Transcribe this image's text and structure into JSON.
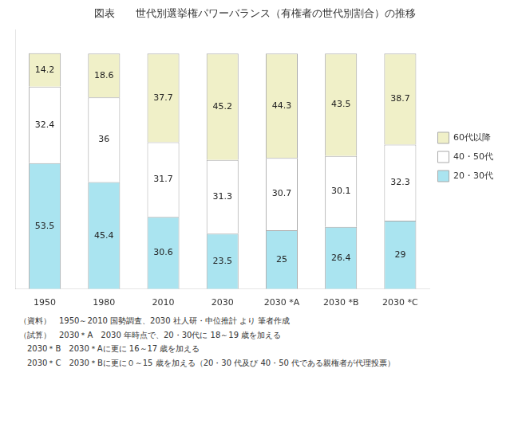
{
  "chart_data": {
    "type": "bar",
    "title": "図表　　世代別選挙権パワーバランス（有権者の世代別割合）の推移",
    "categories": [
      "1950",
      "1980",
      "2010",
      "2030",
      "2030 *A",
      "2030 *B",
      "2030 *C"
    ],
    "series": [
      {
        "name": "20・30代",
        "color": "#aae4f0",
        "values": [
          53.5,
          45.4,
          30.6,
          23.5,
          25.0,
          26.4,
          29.0
        ]
      },
      {
        "name": "40・50代",
        "color": "#ffffff",
        "values": [
          32.4,
          36.0,
          31.7,
          31.3,
          30.7,
          30.1,
          32.3
        ]
      },
      {
        "name": "60代以降",
        "color": "#f0f0c8",
        "values": [
          14.2,
          18.6,
          37.7,
          45.2,
          44.3,
          43.5,
          38.7
        ]
      }
    ],
    "stacked": true,
    "data_labels": true,
    "ylim": [
      0,
      110
    ],
    "tick_labels": "x",
    "grid": false,
    "legend": "right",
    "annotations": [
      "（資料）　1950～2010 国勢調査、2030 社人研・中位推計 より 筆者作成",
      "（試算）　2030＊A　2030 年時点で、20・30代に 18～19 歳を加える",
      "　2030＊B　2030＊Aに更に 16～17 歳を加える",
      "　2030＊C　2030＊Bに更に０～15 歳を加える（20・30 代及び 40・50 代である親権者が代理投票）"
    ]
  }
}
